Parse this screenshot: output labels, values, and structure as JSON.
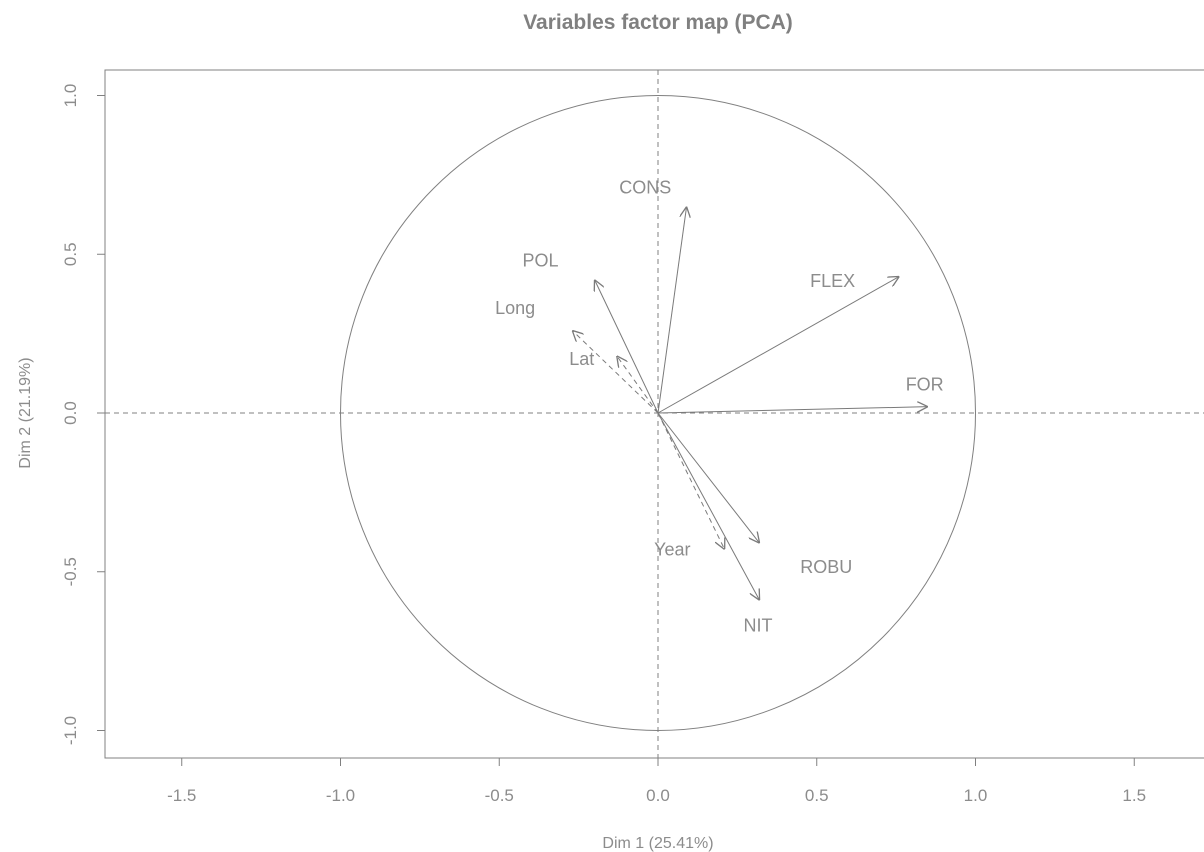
{
  "chart_data": {
    "type": "scatter",
    "title": "Variables factor map (PCA)",
    "xlabel": "Dim 1 (25.41%)",
    "ylabel": "Dim 2 (21.19%)",
    "xlim": [
      -1.75,
      1.72
    ],
    "ylim": [
      -1.08,
      1.08
    ],
    "x_ticks": [
      "-1.5",
      "-1.0",
      "-0.5",
      "0.0",
      "0.5",
      "1.0",
      "1.5"
    ],
    "y_ticks": [
      "-1.0",
      "-0.5",
      "0.0",
      "0.5",
      "1.0"
    ],
    "unit_circle": true,
    "grid": false,
    "colors": {
      "axis": "#808080",
      "text": "#8c8c8c",
      "arrow": "#7a7a7a"
    },
    "variables": [
      {
        "name": "CONS",
        "x": 0.09,
        "y": 0.65,
        "label_x": -0.04,
        "label_y": 0.71,
        "dashed": false
      },
      {
        "name": "POL",
        "x": -0.2,
        "y": 0.42,
        "label_x": -0.37,
        "label_y": 0.48,
        "dashed": false
      },
      {
        "name": "FLEX",
        "x": 0.76,
        "y": 0.43,
        "label_x": 0.55,
        "label_y": 0.415,
        "dashed": false
      },
      {
        "name": "Long",
        "x": -0.27,
        "y": 0.26,
        "label_x": -0.45,
        "label_y": 0.33,
        "dashed": true
      },
      {
        "name": "Lat",
        "x": -0.13,
        "y": 0.18,
        "label_x": -0.24,
        "label_y": 0.17,
        "dashed": true
      },
      {
        "name": "FOR",
        "x": 0.85,
        "y": 0.02,
        "label_x": 0.84,
        "label_y": 0.09,
        "dashed": false
      },
      {
        "name": "Year",
        "x": 0.21,
        "y": -0.43,
        "label_x": 0.045,
        "label_y": -0.43,
        "dashed": true
      },
      {
        "name": "ROBU",
        "x": 0.32,
        "y": -0.41,
        "label_x": 0.53,
        "label_y": -0.485,
        "dashed": false
      },
      {
        "name": "NIT",
        "x": 0.32,
        "y": -0.59,
        "label_x": 0.315,
        "label_y": -0.67,
        "dashed": false
      }
    ]
  }
}
